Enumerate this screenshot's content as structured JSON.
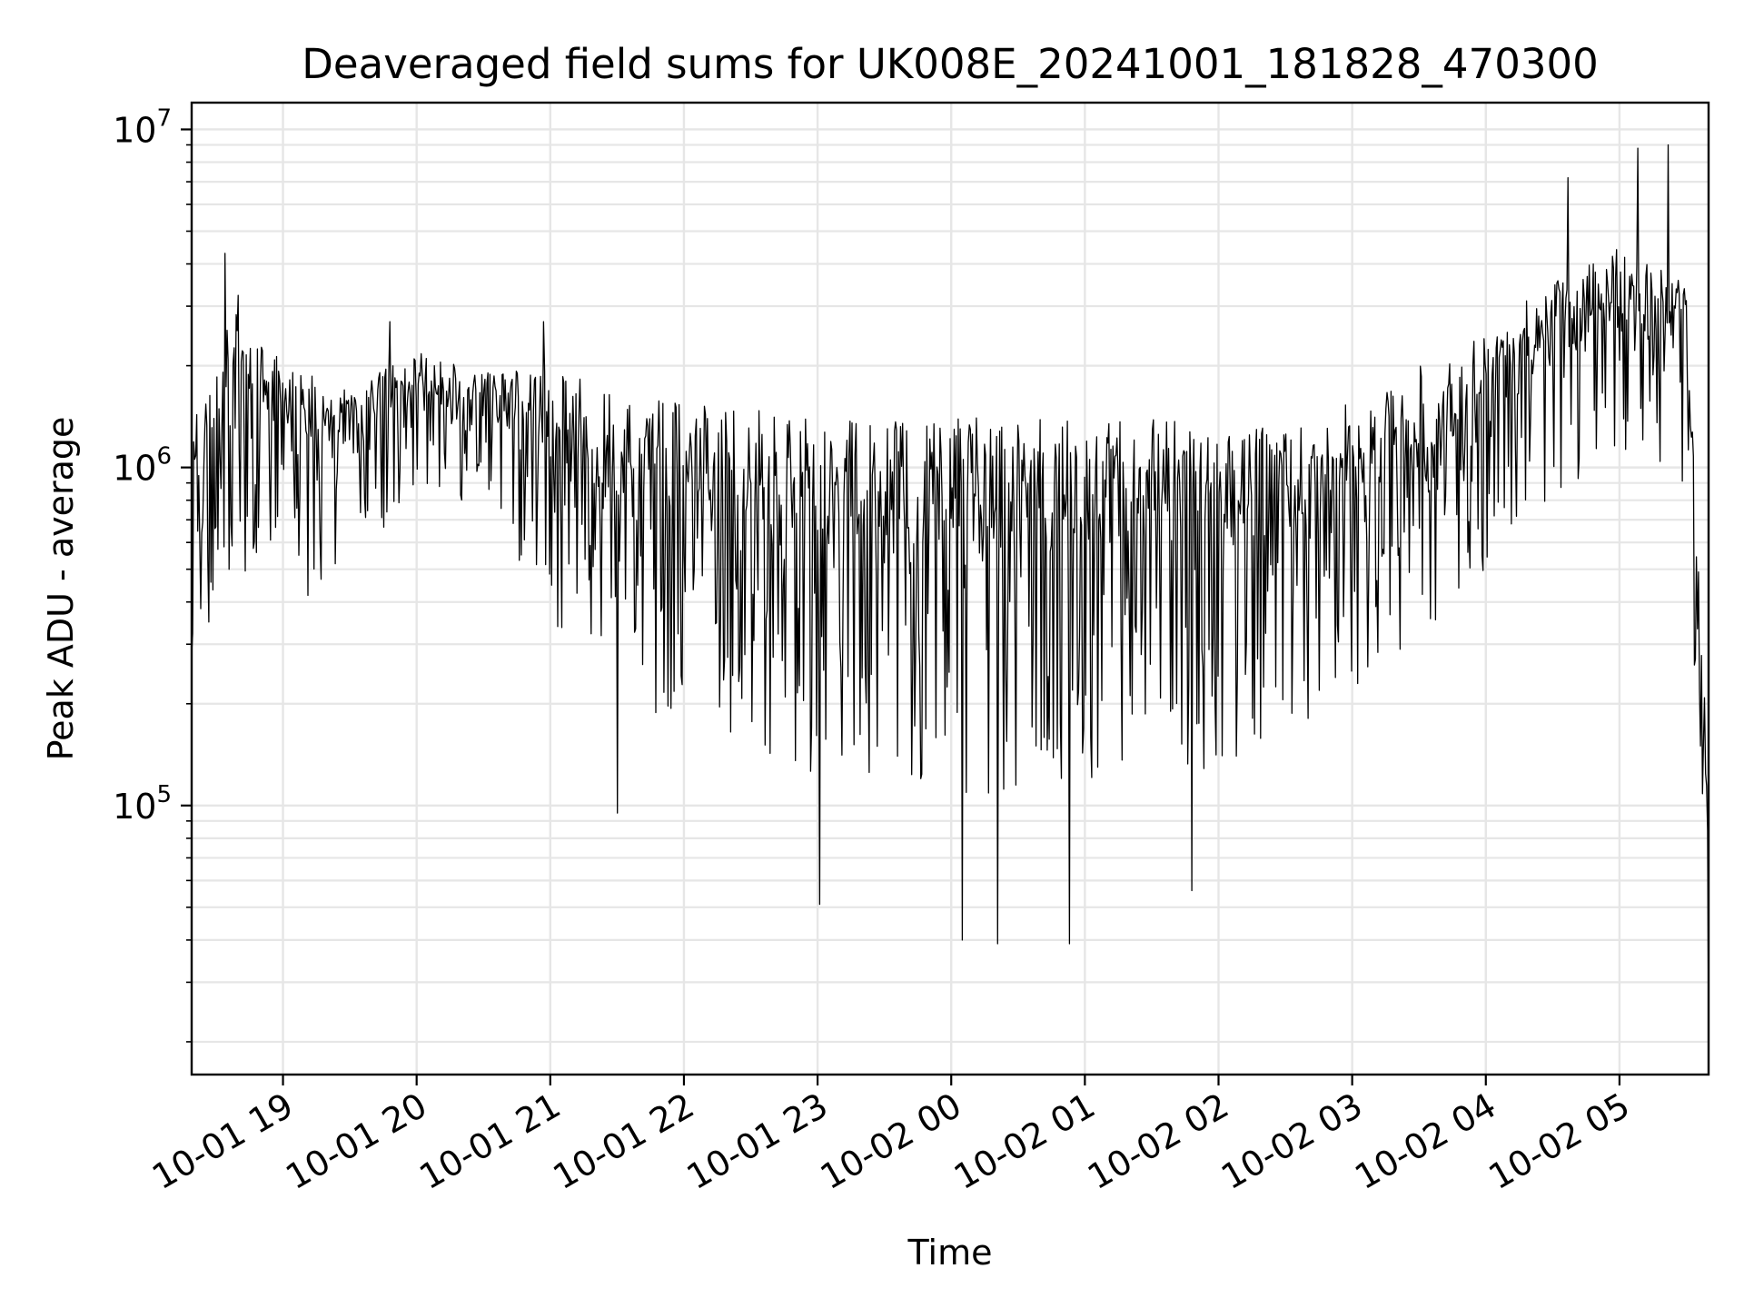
{
  "chart_data": {
    "type": "line",
    "title": "Deaveraged field sums for UK008E_20241001_181828_470300",
    "xlabel": "Time",
    "ylabel": "Peak ADU - average",
    "x_axis": {
      "kind": "time",
      "range": [
        "2024-10-01 18:19",
        "2024-10-02 05:40"
      ],
      "ticks": [
        {
          "value": "2024-10-01 19:00",
          "label": "10-01 19"
        },
        {
          "value": "2024-10-01 20:00",
          "label": "10-01 20"
        },
        {
          "value": "2024-10-01 21:00",
          "label": "10-01 21"
        },
        {
          "value": "2024-10-01 22:00",
          "label": "10-01 22"
        },
        {
          "value": "2024-10-01 23:00",
          "label": "10-01 23"
        },
        {
          "value": "2024-10-02 00:00",
          "label": "10-02 00"
        },
        {
          "value": "2024-10-02 01:00",
          "label": "10-02 01"
        },
        {
          "value": "2024-10-02 02:00",
          "label": "10-02 02"
        },
        {
          "value": "2024-10-02 03:00",
          "label": "10-02 03"
        },
        {
          "value": "2024-10-02 04:00",
          "label": "10-02 04"
        },
        {
          "value": "2024-10-02 05:00",
          "label": "10-02 05"
        }
      ],
      "tick_label_rotation_deg": 30
    },
    "y_axis": {
      "scale": "log",
      "range": [
        16000,
        12000000
      ],
      "ticks": [
        {
          "value": 100000,
          "base": "10",
          "exponent": "5"
        },
        {
          "value": 1000000,
          "base": "10",
          "exponent": "6"
        },
        {
          "value": 10000000,
          "base": "10",
          "exponent": "7"
        }
      ]
    },
    "grid": {
      "major": true,
      "minor": true
    },
    "series": [
      {
        "color": "#000000",
        "envelope": [
          {
            "x": "2024-10-01 18:19",
            "y_high": 1300000,
            "y_low": 280000
          },
          {
            "x": "2024-10-01 18:40",
            "y_high": 3500000,
            "y_low": 500000
          },
          {
            "x": "2024-10-01 19:00",
            "y_high": 2000000,
            "y_low": 350000
          },
          {
            "x": "2024-10-01 19:30",
            "y_high": 1750000,
            "y_low": 550000
          },
          {
            "x": "2024-10-01 20:00",
            "y_high": 2200000,
            "y_low": 800000
          },
          {
            "x": "2024-10-01 20:30",
            "y_high": 1900000,
            "y_low": 800000
          },
          {
            "x": "2024-10-01 21:00",
            "y_high": 2000000,
            "y_low": 350000
          },
          {
            "x": "2024-10-01 21:30",
            "y_high": 1650000,
            "y_low": 200000
          },
          {
            "x": "2024-10-01 22:00",
            "y_high": 1550000,
            "y_low": 180000
          },
          {
            "x": "2024-10-01 22:30",
            "y_high": 1500000,
            "y_low": 150000
          },
          {
            "x": "2024-10-01 23:00",
            "y_high": 1450000,
            "y_low": 120000
          },
          {
            "x": "2024-10-01 23:30",
            "y_high": 1400000,
            "y_low": 120000
          },
          {
            "x": "2024-10-02 00:00",
            "y_high": 1450000,
            "y_low": 100000
          },
          {
            "x": "2024-10-02 00:30",
            "y_high": 1400000,
            "y_low": 110000
          },
          {
            "x": "2024-10-02 01:00",
            "y_high": 1400000,
            "y_low": 120000
          },
          {
            "x": "2024-10-02 01:30",
            "y_high": 1400000,
            "y_low": 120000
          },
          {
            "x": "2024-10-02 02:00",
            "y_high": 1350000,
            "y_low": 130000
          },
          {
            "x": "2024-10-02 02:30",
            "y_high": 1400000,
            "y_low": 150000
          },
          {
            "x": "2024-10-02 03:00",
            "y_high": 1600000,
            "y_low": 200000
          },
          {
            "x": "2024-10-02 03:30",
            "y_high": 2000000,
            "y_low": 300000
          },
          {
            "x": "2024-10-02 04:00",
            "y_high": 2600000,
            "y_low": 500000
          },
          {
            "x": "2024-10-02 04:30",
            "y_high": 3500000,
            "y_low": 800000
          },
          {
            "x": "2024-10-02 05:00",
            "y_high": 4500000,
            "y_low": 1100000
          },
          {
            "x": "2024-10-02 05:30",
            "y_high": 3500000,
            "y_low": 900000
          },
          {
            "x": "2024-10-02 05:35",
            "y_high": 600000,
            "y_low": 150000
          },
          {
            "x": "2024-10-02 05:40",
            "y_high": 130000,
            "y_low": 21000
          }
        ],
        "notable_points": [
          {
            "x": "2024-10-01 18:34",
            "y": 4300000
          },
          {
            "x": "2024-10-01 19:48",
            "y": 2700000
          },
          {
            "x": "2024-10-01 20:57",
            "y": 2700000
          },
          {
            "x": "2024-10-01 21:30",
            "y": 95000
          },
          {
            "x": "2024-10-01 23:01",
            "y": 51000
          },
          {
            "x": "2024-10-02 00:05",
            "y": 40000
          },
          {
            "x": "2024-10-02 00:21",
            "y": 39000
          },
          {
            "x": "2024-10-02 00:53",
            "y": 39000
          },
          {
            "x": "2024-10-02 01:48",
            "y": 56000
          },
          {
            "x": "2024-10-02 04:37",
            "y": 7200000
          },
          {
            "x": "2024-10-02 05:08",
            "y": 8800000
          },
          {
            "x": "2024-10-02 05:22",
            "y": 9000000
          },
          {
            "x": "2024-10-02 05:40",
            "y": 21000
          }
        ]
      }
    ]
  }
}
